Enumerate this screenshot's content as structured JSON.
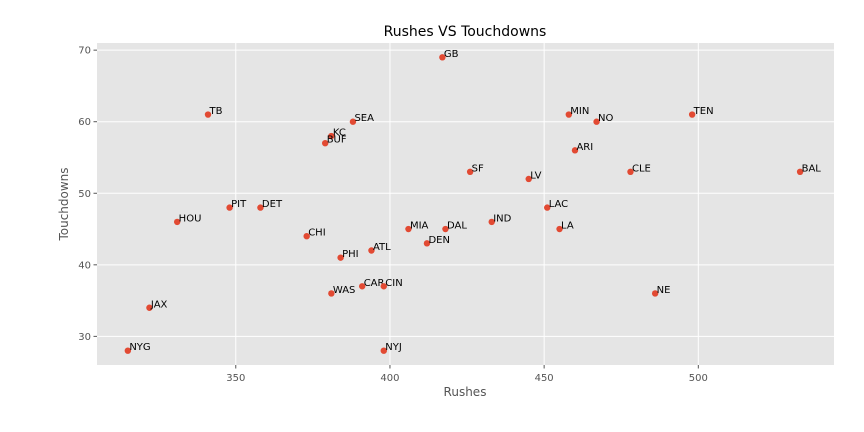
{
  "chart_data": {
    "type": "scatter",
    "title": "Rushes VS Touchdowns",
    "xlabel": "Rushes",
    "ylabel": "Touchdowns",
    "xlim": [
      305,
      544
    ],
    "ylim": [
      26,
      71
    ],
    "xticks": [
      350,
      400,
      450,
      500
    ],
    "yticks": [
      30,
      40,
      50,
      60,
      70
    ],
    "xtick_labels": [
      "350",
      "400",
      "450",
      "500"
    ],
    "ytick_labels": [
      "30",
      "40",
      "50",
      "60",
      "70"
    ],
    "grid": true,
    "colors": {
      "background": "#e5e5e5",
      "grid": "#ffffff",
      "marker": "#e24a33"
    },
    "points": [
      {
        "label": "GB",
        "x": 417,
        "y": 69
      },
      {
        "label": "TB",
        "x": 341,
        "y": 61
      },
      {
        "label": "SEA",
        "x": 388,
        "y": 60
      },
      {
        "label": "KC",
        "x": 381,
        "y": 58
      },
      {
        "label": "BUF",
        "x": 379,
        "y": 57
      },
      {
        "label": "MIN",
        "x": 458,
        "y": 61
      },
      {
        "label": "NO",
        "x": 467,
        "y": 60
      },
      {
        "label": "TEN",
        "x": 498,
        "y": 61
      },
      {
        "label": "ARI",
        "x": 460,
        "y": 56
      },
      {
        "label": "SF",
        "x": 426,
        "y": 53
      },
      {
        "label": "LV",
        "x": 445,
        "y": 52
      },
      {
        "label": "CLE",
        "x": 478,
        "y": 53
      },
      {
        "label": "BAL",
        "x": 533,
        "y": 53
      },
      {
        "label": "PIT",
        "x": 348,
        "y": 48
      },
      {
        "label": "DET",
        "x": 358,
        "y": 48
      },
      {
        "label": "HOU",
        "x": 331,
        "y": 46
      },
      {
        "label": "LAC",
        "x": 451,
        "y": 48
      },
      {
        "label": "IND",
        "x": 433,
        "y": 46
      },
      {
        "label": "LA",
        "x": 455,
        "y": 45
      },
      {
        "label": "MIA",
        "x": 406,
        "y": 45
      },
      {
        "label": "DAL",
        "x": 418,
        "y": 45
      },
      {
        "label": "DEN",
        "x": 412,
        "y": 43
      },
      {
        "label": "CHI",
        "x": 373,
        "y": 44
      },
      {
        "label": "ATL",
        "x": 394,
        "y": 42
      },
      {
        "label": "PHI",
        "x": 384,
        "y": 41
      },
      {
        "label": "CAR",
        "x": 391,
        "y": 37
      },
      {
        "label": "CIN",
        "x": 398,
        "y": 37
      },
      {
        "label": "WAS",
        "x": 381,
        "y": 36
      },
      {
        "label": "NE",
        "x": 486,
        "y": 36
      },
      {
        "label": "JAX",
        "x": 322,
        "y": 34
      },
      {
        "label": "NYG",
        "x": 315,
        "y": 28
      },
      {
        "label": "NYJ",
        "x": 398,
        "y": 28
      }
    ]
  }
}
